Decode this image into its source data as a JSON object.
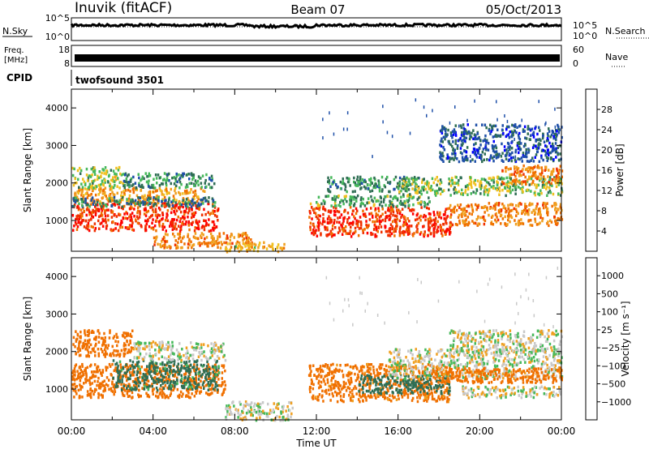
{
  "header": {
    "station": "Inuvik (fitACF)",
    "beam": "Beam 07",
    "date": "05/Oct/2013"
  },
  "nsky_panel": {
    "left_label": "N.Sky",
    "left_ticks": [
      "10^5",
      "10^0"
    ],
    "right_ticks": [
      "10^5",
      "10^0"
    ],
    "right_label": "N.Search"
  },
  "freq_panel": {
    "left_label_line1": "Freq.",
    "left_label_line2": "[MHz]",
    "left_ticks": [
      "18",
      "8"
    ],
    "right_ticks": [
      "60",
      "0"
    ],
    "right_label": "Nave"
  },
  "cpid_panel": {
    "label": "CPID",
    "value": "twofsound 3501"
  },
  "colors": {
    "power": [
      "#0000ff",
      "#1e4fa8",
      "#2f6e54",
      "#46b85a",
      "#f0c020",
      "#f0a020",
      "#f07000",
      "#f03000",
      "#ff0000"
    ],
    "velocity": [
      "#ff0000",
      "#f03000",
      "#f07000",
      "#f0a020",
      "#c8c8c8",
      "#46b85a",
      "#2f6e54",
      "#1e4fa8",
      "#0000ff"
    ]
  },
  "chart_data": [
    {
      "type": "heatmap",
      "name": "power",
      "ylabel": "Slant Range [km]",
      "ylim": [
        180,
        4500
      ],
      "y_ticks": [
        "1000",
        "2000",
        "3000",
        "4000"
      ],
      "x_range_hours": [
        0,
        24
      ],
      "colorbar": {
        "label": "Power [dB]",
        "ticks": [
          "28",
          "24",
          "20",
          "16",
          "12",
          "8",
          "4"
        ],
        "range": [
          0,
          32
        ]
      },
      "regions": [
        {
          "t": [
            0,
            7.2
          ],
          "r": [
            750,
            1500
          ],
          "value": 27
        },
        {
          "t": [
            0,
            6.5
          ],
          "r": [
            1500,
            1900
          ],
          "value": 20
        },
        {
          "t": [
            0,
            2.5
          ],
          "r": [
            1900,
            2450
          ],
          "value": 14
        },
        {
          "t": [
            2.5,
            7.0
          ],
          "r": [
            1900,
            2300
          ],
          "value": 10
        },
        {
          "t": [
            0,
            7.0
          ],
          "r": [
            1400,
            1650
          ],
          "value": 8
        },
        {
          "t": [
            4.0,
            8.8
          ],
          "r": [
            300,
            700
          ],
          "value": 22
        },
        {
          "t": [
            7.5,
            10.5
          ],
          "r": [
            200,
            450
          ],
          "value": 18
        },
        {
          "t": [
            11.6,
            18.6
          ],
          "r": [
            600,
            1400
          ],
          "value": 27
        },
        {
          "t": [
            11.6,
            17.5
          ],
          "r": [
            1400,
            1700
          ],
          "value": 12
        },
        {
          "t": [
            12.5,
            17.0
          ],
          "r": [
            1800,
            2200
          ],
          "value": 10
        },
        {
          "t": [
            16.0,
            24.0
          ],
          "r": [
            1700,
            2200
          ],
          "value": 13
        },
        {
          "t": [
            18.5,
            24.0
          ],
          "r": [
            900,
            1500
          ],
          "value": 22
        },
        {
          "t": [
            21.0,
            24.0
          ],
          "r": [
            2000,
            2500
          ],
          "value": 22
        },
        {
          "t": [
            18.0,
            24.0
          ],
          "r": [
            2600,
            3600
          ],
          "value": 6
        }
      ]
    },
    {
      "type": "heatmap",
      "name": "velocity",
      "ylabel": "Slant Range [km]",
      "xlabel": "Time UT",
      "ylim": [
        180,
        4500
      ],
      "y_ticks": [
        "1000",
        "2000",
        "3000",
        "4000"
      ],
      "x_ticks": [
        "00:00",
        "04:00",
        "08:00",
        "12:00",
        "16:00",
        "20:00",
        "00:00"
      ],
      "x_range_hours": [
        0,
        24
      ],
      "colorbar": {
        "label": "Velocity [m s⁻¹]",
        "ticks": [
          "1000",
          "500",
          "100",
          "25",
          "−25",
          "−100",
          "−500",
          "−1000"
        ]
      },
      "regions": [
        {
          "t": [
            0,
            7.5
          ],
          "r": [
            800,
            1700
          ],
          "value": -180
        },
        {
          "t": [
            2.0,
            7.2
          ],
          "r": [
            1000,
            1800
          ],
          "value": 150
        },
        {
          "t": [
            0,
            3.0
          ],
          "r": [
            1900,
            2600
          ],
          "value": -220
        },
        {
          "t": [
            3.0,
            7.5
          ],
          "r": [
            1800,
            2300
          ],
          "value": 0
        },
        {
          "t": [
            7.5,
            10.8
          ],
          "r": [
            200,
            700
          ],
          "value": 0
        },
        {
          "t": [
            11.6,
            18.5
          ],
          "r": [
            700,
            1700
          ],
          "value": -150
        },
        {
          "t": [
            14.0,
            18.5
          ],
          "r": [
            900,
            1400
          ],
          "value": 180
        },
        {
          "t": [
            15.5,
            24.0
          ],
          "r": [
            1300,
            2100
          ],
          "value": 0
        },
        {
          "t": [
            17.5,
            24.0
          ],
          "r": [
            1200,
            1600
          ],
          "value": -180
        },
        {
          "t": [
            18.5,
            24.0
          ],
          "r": [
            2000,
            2600
          ],
          "value": 0
        },
        {
          "t": [
            19.0,
            24.0
          ],
          "r": [
            800,
            1100
          ],
          "value": 0
        }
      ]
    }
  ]
}
